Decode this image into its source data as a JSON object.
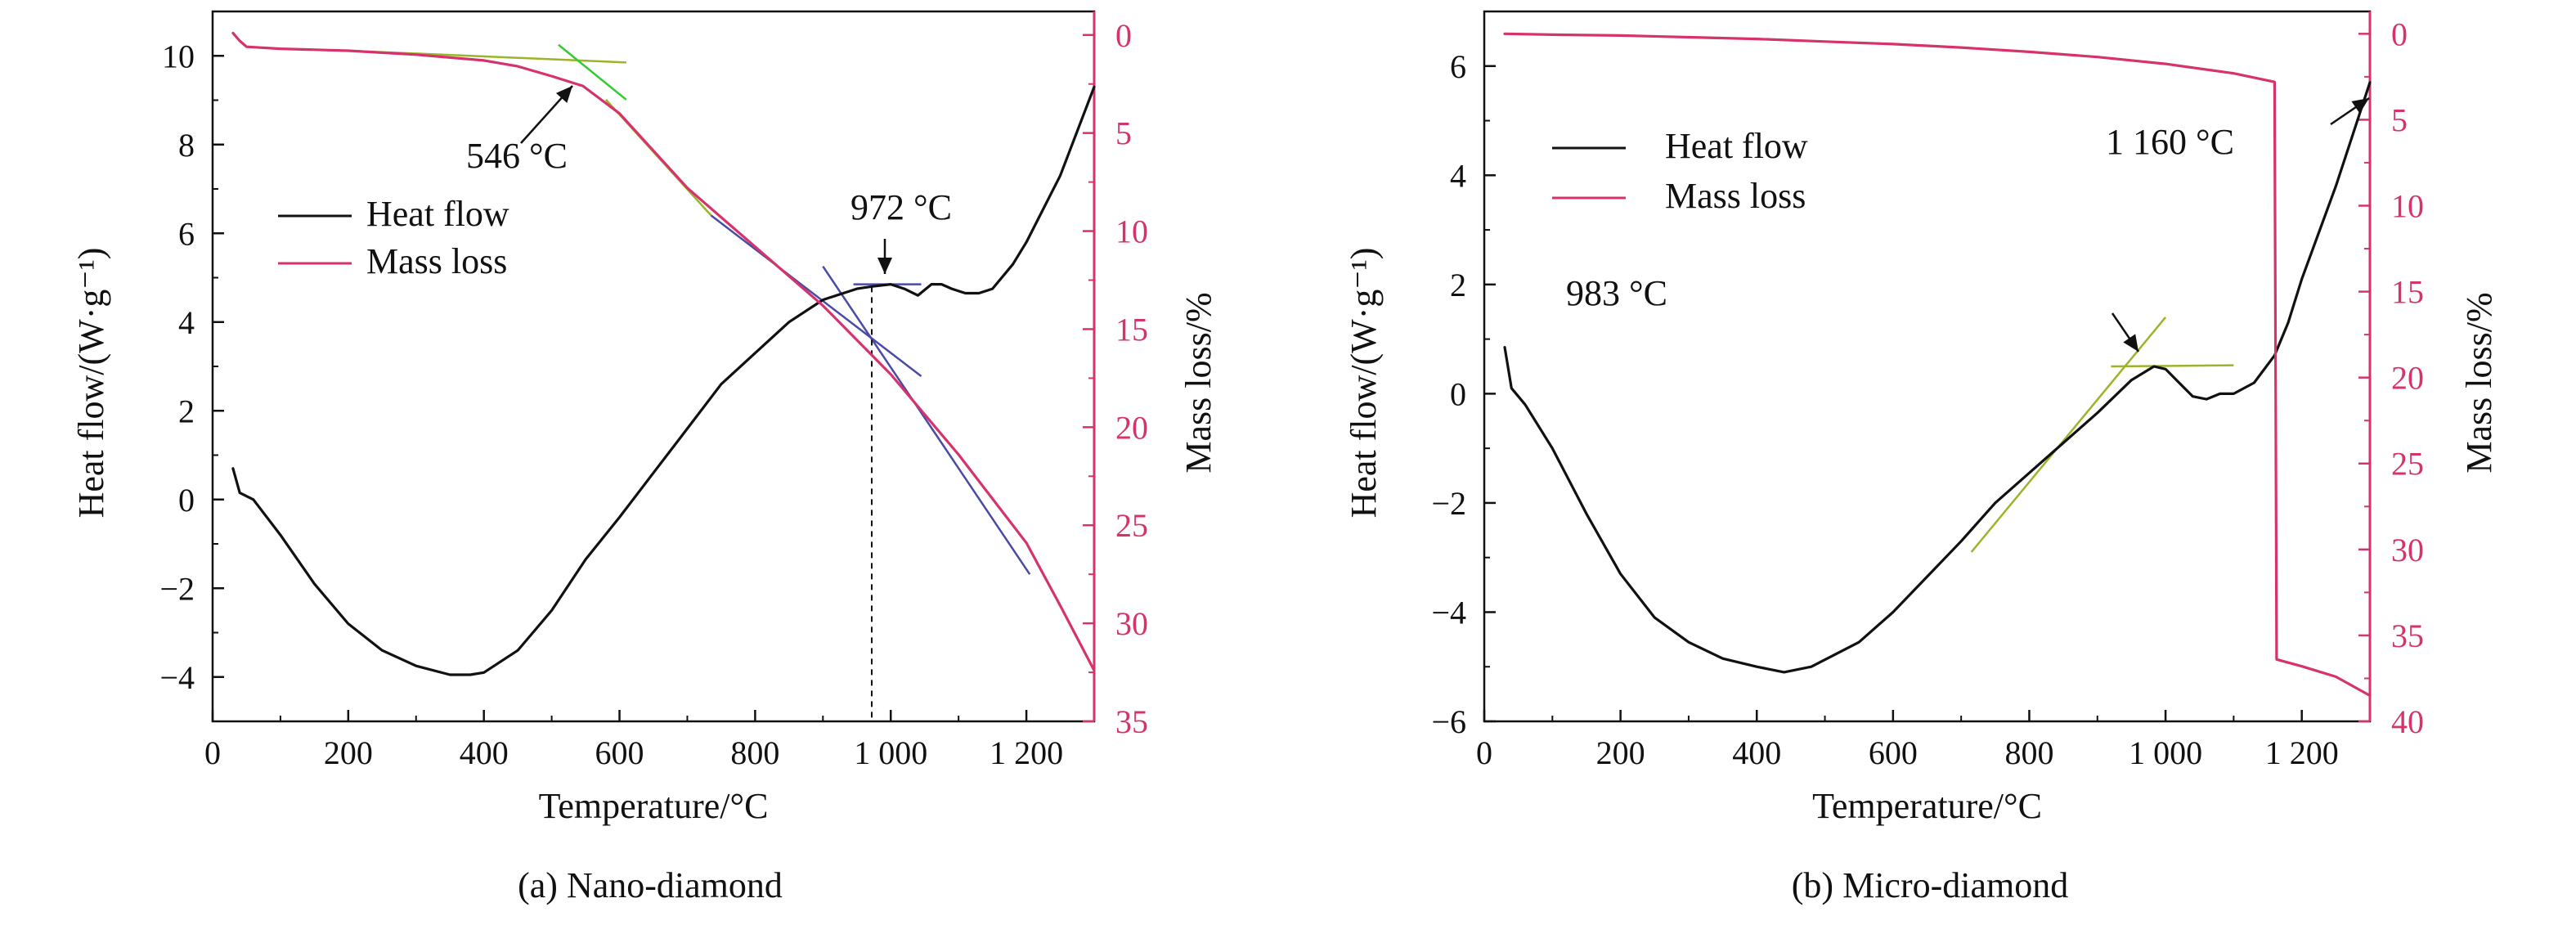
{
  "colors": {
    "heat_flow": "#111111",
    "mass_loss": "#d6336c",
    "right_axis": "#d6336c",
    "tangent_green": "#9bb52a",
    "tangent_blue": "#4a4aa8",
    "tangent_bright_green": "#33cc33"
  },
  "chart_data": [
    {
      "type": "line",
      "panel": "a",
      "caption": "(a) Nano-diamond",
      "xlabel": "Temperature/°C",
      "ylabel": "Heat flow/(W·g⁻¹)",
      "y2label": "Mass loss/%",
      "xlim": [
        0,
        1300
      ],
      "ylim": [
        -5,
        11
      ],
      "y2lim": [
        35,
        -1.2
      ],
      "x_ticks": [
        0,
        200,
        400,
        600,
        800,
        1000,
        1200
      ],
      "x_tick_labels": [
        "0",
        "200",
        "400",
        "600",
        "800",
        "1 000",
        "1 200"
      ],
      "y_ticks": [
        -4,
        -2,
        0,
        2,
        4,
        6,
        8,
        10
      ],
      "y_tick_labels": [
        "−4",
        "−2",
        "0",
        "2",
        "4",
        "6",
        "8",
        "10"
      ],
      "y2_ticks": [
        0,
        5,
        10,
        15,
        20,
        25,
        30,
        35
      ],
      "y2_tick_labels": [
        "0",
        "5",
        "10",
        "15",
        "20",
        "25",
        "30",
        "35"
      ],
      "legend": [
        "Heat flow",
        "Mass loss"
      ],
      "annotations": [
        {
          "text": "546 °C",
          "x": 546,
          "mass": 2.6
        },
        {
          "text": "972 °C",
          "x": 972,
          "heat": 4.8
        }
      ],
      "series": [
        {
          "name": "Heat flow",
          "axis": "left",
          "x": [
            30,
            40,
            60,
            100,
            150,
            200,
            250,
            300,
            350,
            380,
            400,
            450,
            500,
            550,
            600,
            650,
            700,
            750,
            800,
            850,
            900,
            950,
            972,
            1000,
            1020,
            1040,
            1060,
            1075,
            1090,
            1110,
            1130,
            1150,
            1180,
            1200,
            1250,
            1300
          ],
          "y": [
            0.7,
            0.15,
            0.0,
            -0.8,
            -1.9,
            -2.8,
            -3.4,
            -3.75,
            -3.95,
            -3.95,
            -3.9,
            -3.4,
            -2.5,
            -1.35,
            -0.4,
            0.6,
            1.6,
            2.6,
            3.3,
            4.0,
            4.5,
            4.75,
            4.8,
            4.85,
            4.75,
            4.6,
            4.85,
            4.85,
            4.75,
            4.65,
            4.65,
            4.75,
            5.3,
            5.8,
            7.3,
            9.3
          ]
        },
        {
          "name": "Mass loss",
          "axis": "right",
          "x": [
            30,
            40,
            50,
            100,
            200,
            300,
            400,
            450,
            500,
            546,
            600,
            700,
            800,
            900,
            1000,
            1100,
            1200,
            1250,
            1300
          ],
          "y": [
            -0.1,
            0.3,
            0.6,
            0.7,
            0.8,
            1.0,
            1.3,
            1.6,
            2.1,
            2.6,
            4.0,
            7.8,
            10.8,
            13.8,
            17.3,
            21.4,
            25.9,
            29.1,
            32.4
          ]
        }
      ],
      "tangents": [
        {
          "axis": "right",
          "color": "tangent_green",
          "x": [
            200,
            610
          ],
          "y": [
            0.8,
            1.4
          ]
        },
        {
          "axis": "right",
          "color": "tangent_bright_green",
          "x": [
            510,
            610
          ],
          "y": [
            0.5,
            3.3
          ]
        },
        {
          "axis": "right",
          "color": "tangent_green",
          "x": [
            580,
            735
          ],
          "y": [
            3.3,
            9.2
          ]
        },
        {
          "axis": "right",
          "color": "tangent_blue",
          "x": [
            735,
            1045
          ],
          "y": [
            9.2,
            17.4
          ]
        },
        {
          "axis": "right",
          "color": "tangent_blue",
          "x": [
            900,
            1205
          ],
          "y": [
            11.8,
            27.5
          ]
        },
        {
          "axis": "left",
          "color": "tangent_blue",
          "x": [
            945,
            1045
          ],
          "y": [
            4.85,
            4.85
          ]
        }
      ],
      "marker_lines": [
        {
          "x": 972,
          "from_heat": 4.8,
          "to_heat": -5
        }
      ]
    },
    {
      "type": "line",
      "panel": "b",
      "caption": "(b) Micro-diamond",
      "xlabel": "Temperature/°C",
      "ylabel": "Heat flow/(W·g⁻¹)",
      "y2label": "Mass loss/%",
      "xlim": [
        0,
        1300
      ],
      "ylim": [
        -6,
        7
      ],
      "y2lim": [
        40,
        -1.3
      ],
      "x_ticks": [
        0,
        200,
        400,
        600,
        800,
        1000,
        1200
      ],
      "x_tick_labels": [
        "0",
        "200",
        "400",
        "600",
        "800",
        "1 000",
        "1 200"
      ],
      "y_ticks": [
        -6,
        -4,
        -2,
        0,
        2,
        4,
        6
      ],
      "y_tick_labels": [
        "−6",
        "−4",
        "−2",
        "0",
        "2",
        "4",
        "6"
      ],
      "y2_ticks": [
        0,
        5,
        10,
        15,
        20,
        25,
        30,
        35,
        40
      ],
      "y2_tick_labels": [
        "0",
        "5",
        "10",
        "15",
        "20",
        "25",
        "30",
        "35",
        "40"
      ],
      "legend": [
        "Heat flow",
        "Mass loss"
      ],
      "annotations": [
        {
          "text": "983 °C",
          "x": 983,
          "heat": 0.5
        },
        {
          "text": "1 160 °C",
          "x": 1160,
          "mass": 2.8
        }
      ],
      "series": [
        {
          "name": "Heat flow",
          "axis": "left",
          "x": [
            30,
            40,
            60,
            100,
            150,
            200,
            250,
            300,
            350,
            400,
            440,
            480,
            550,
            600,
            650,
            700,
            750,
            800,
            850,
            900,
            950,
            983,
            1000,
            1020,
            1040,
            1060,
            1080,
            1100,
            1130,
            1160,
            1180,
            1200,
            1250,
            1300
          ],
          "y": [
            0.85,
            0.1,
            -0.2,
            -1.0,
            -2.2,
            -3.3,
            -4.1,
            -4.55,
            -4.85,
            -5.0,
            -5.1,
            -5.0,
            -4.55,
            -4.0,
            -3.35,
            -2.7,
            -2.0,
            -1.45,
            -0.9,
            -0.35,
            0.25,
            0.5,
            0.45,
            0.2,
            -0.05,
            -0.1,
            0.0,
            0.0,
            0.2,
            0.7,
            1.3,
            2.1,
            3.8,
            5.7
          ]
        },
        {
          "name": "Mass loss",
          "axis": "right",
          "x": [
            30,
            100,
            200,
            300,
            400,
            500,
            600,
            700,
            800,
            900,
            1000,
            1100,
            1160,
            1163,
            1200,
            1250,
            1300
          ],
          "y": [
            0.0,
            0.05,
            0.1,
            0.2,
            0.3,
            0.45,
            0.6,
            0.8,
            1.05,
            1.35,
            1.75,
            2.3,
            2.8,
            36.4,
            36.8,
            37.4,
            38.5
          ]
        }
      ],
      "tangents": [
        {
          "axis": "left",
          "color": "tangent_green",
          "x": [
            715,
            1000
          ],
          "y": [
            -2.9,
            1.4
          ]
        },
        {
          "axis": "left",
          "color": "tangent_green",
          "x": [
            920,
            1100
          ],
          "y": [
            0.5,
            0.52
          ]
        }
      ],
      "marker_lines": []
    }
  ]
}
